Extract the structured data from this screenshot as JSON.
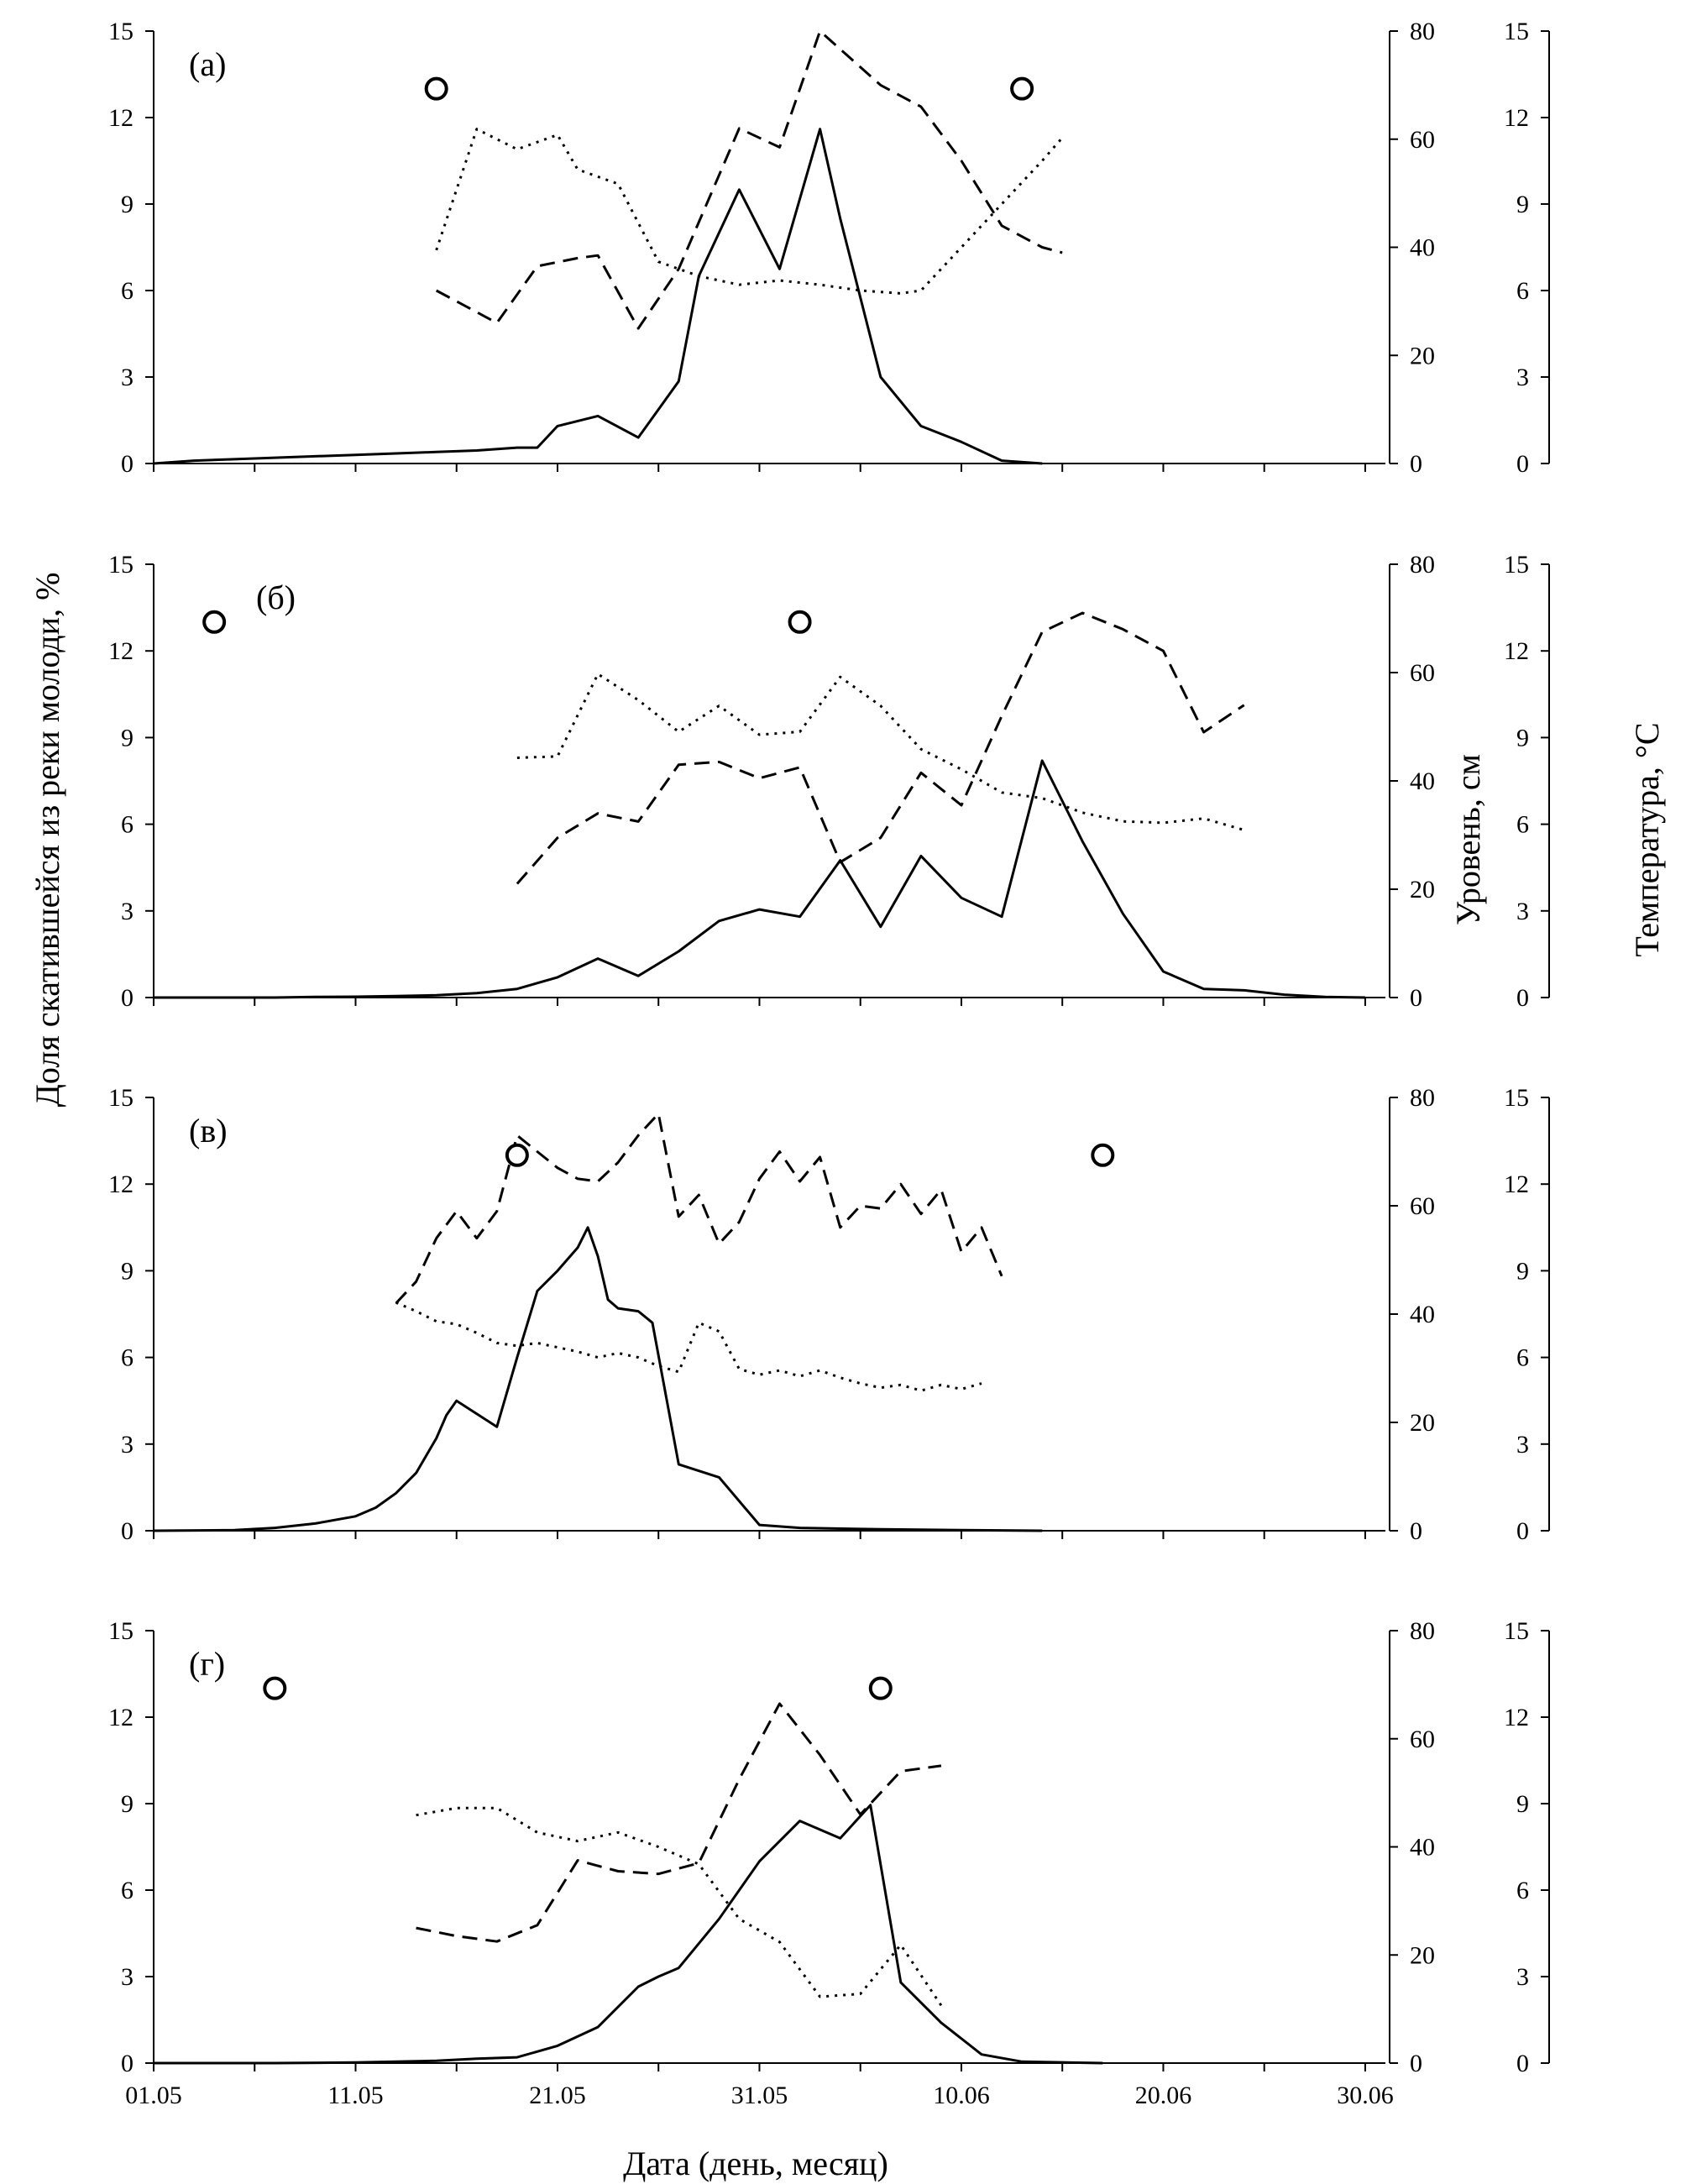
{
  "chart_data": {
    "type": "line",
    "ylabel": "Доля скатившейся из реки молоди, %",
    "ylabel_level": "Уровень, см",
    "ylabel_temp": "Температура, °C",
    "xlabel": "Дата (день, месяц)",
    "x_ticks": [
      "01.05",
      "11.05",
      "21.05",
      "31.05",
      "10.06",
      "20.06",
      "30.06"
    ],
    "xlim": [
      0,
      61
    ],
    "ylim": [
      0,
      15
    ],
    "ylim_level": [
      0,
      80
    ],
    "ylim_temp": [
      0,
      15
    ],
    "y_ticks": [
      0,
      3,
      6,
      9,
      12,
      15
    ],
    "y_ticks_level": [
      0,
      20,
      40,
      60,
      80
    ],
    "y_ticks_temp": [
      0,
      3,
      6,
      9,
      12,
      15
    ],
    "panels": [
      {
        "label": "(а)",
        "share": [
          [
            0,
            0
          ],
          [
            2,
            0.1
          ],
          [
            4,
            0.15
          ],
          [
            6,
            0.2
          ],
          [
            8,
            0.25
          ],
          [
            10,
            0.3
          ],
          [
            12,
            0.35
          ],
          [
            14,
            0.4
          ],
          [
            16,
            0.45
          ],
          [
            18,
            0.55
          ],
          [
            19,
            0.55
          ],
          [
            20,
            1.3
          ],
          [
            22,
            1.65
          ],
          [
            24,
            0.9
          ],
          [
            26,
            2.85
          ],
          [
            27,
            6.5
          ],
          [
            29,
            9.5
          ],
          [
            31,
            6.75
          ],
          [
            33,
            11.6
          ],
          [
            34,
            8.5
          ],
          [
            36,
            3.0
          ],
          [
            38,
            1.3
          ],
          [
            40,
            0.75
          ],
          [
            42,
            0.1
          ],
          [
            44,
            0
          ]
        ],
        "level": [
          [
            14,
            32
          ],
          [
            17,
            26
          ],
          [
            19,
            36.5
          ],
          [
            21,
            38
          ],
          [
            22,
            38.5
          ],
          [
            24,
            25
          ],
          [
            26,
            36
          ],
          [
            29,
            62
          ],
          [
            31,
            58.5
          ],
          [
            33,
            80
          ],
          [
            36,
            70
          ],
          [
            38,
            66
          ],
          [
            40,
            56
          ],
          [
            42,
            44
          ],
          [
            44,
            40
          ],
          [
            45,
            39
          ]
        ],
        "temp": [
          [
            14,
            7.4
          ],
          [
            16,
            11.6
          ],
          [
            18,
            10.9
          ],
          [
            20,
            11.4
          ],
          [
            21,
            10.2
          ],
          [
            23,
            9.7
          ],
          [
            25,
            7.0
          ],
          [
            27,
            6.5
          ],
          [
            29,
            6.2
          ],
          [
            31,
            6.35
          ],
          [
            33,
            6.2
          ],
          [
            35,
            6.0
          ],
          [
            37,
            5.9
          ],
          [
            38,
            6.0
          ],
          [
            40,
            7.5
          ],
          [
            42,
            9.0
          ],
          [
            44,
            10.5
          ],
          [
            45,
            11.3
          ]
        ],
        "markers": [
          [
            14,
            13
          ],
          [
            43,
            13
          ]
        ]
      },
      {
        "label": "(б)",
        "share": [
          [
            0,
            0
          ],
          [
            6,
            0
          ],
          [
            8,
            0.02
          ],
          [
            10,
            0.03
          ],
          [
            12,
            0.05
          ],
          [
            14,
            0.08
          ],
          [
            16,
            0.15
          ],
          [
            18,
            0.3
          ],
          [
            20,
            0.7
          ],
          [
            22,
            1.35
          ],
          [
            24,
            0.75
          ],
          [
            26,
            1.6
          ],
          [
            28,
            2.65
          ],
          [
            30,
            3.05
          ],
          [
            32,
            2.8
          ],
          [
            34,
            4.75
          ],
          [
            36,
            2.45
          ],
          [
            38,
            4.9
          ],
          [
            40,
            3.45
          ],
          [
            42,
            2.8
          ],
          [
            44,
            8.2
          ],
          [
            46,
            5.4
          ],
          [
            48,
            2.9
          ],
          [
            50,
            0.9
          ],
          [
            52,
            0.3
          ],
          [
            54,
            0.25
          ],
          [
            56,
            0.1
          ],
          [
            58,
            0.02
          ],
          [
            60,
            0
          ]
        ],
        "level": [
          [
            18,
            21
          ],
          [
            20,
            29.5
          ],
          [
            22,
            34
          ],
          [
            24,
            32.5
          ],
          [
            26,
            43
          ],
          [
            28,
            43.5
          ],
          [
            30,
            40.5
          ],
          [
            32,
            42.5
          ],
          [
            34,
            25
          ],
          [
            36,
            29.5
          ],
          [
            38,
            41.5
          ],
          [
            40,
            35.5
          ],
          [
            42,
            52
          ],
          [
            44,
            67.5
          ],
          [
            46,
            71
          ],
          [
            48,
            68
          ],
          [
            50,
            64
          ],
          [
            52,
            49
          ],
          [
            54,
            54
          ]
        ],
        "temp": [
          [
            18,
            8.3
          ],
          [
            20,
            8.35
          ],
          [
            22,
            11.2
          ],
          [
            24,
            10.3
          ],
          [
            26,
            9.2
          ],
          [
            28,
            10.1
          ],
          [
            30,
            9.1
          ],
          [
            32,
            9.2
          ],
          [
            34,
            11.1
          ],
          [
            36,
            10.1
          ],
          [
            38,
            8.6
          ],
          [
            40,
            7.9
          ],
          [
            42,
            7.1
          ],
          [
            44,
            6.9
          ],
          [
            46,
            6.4
          ],
          [
            48,
            6.1
          ],
          [
            50,
            6.05
          ],
          [
            52,
            6.2
          ],
          [
            54,
            5.8
          ]
        ],
        "markers": [
          [
            3,
            13
          ],
          [
            32,
            13
          ]
        ]
      },
      {
        "label": "(в)",
        "share": [
          [
            0,
            0
          ],
          [
            4,
            0.02
          ],
          [
            6,
            0.1
          ],
          [
            8,
            0.25
          ],
          [
            10,
            0.5
          ],
          [
            11,
            0.8
          ],
          [
            12,
            1.3
          ],
          [
            13,
            2.0
          ],
          [
            14,
            3.2
          ],
          [
            14.5,
            4.0
          ],
          [
            15,
            4.5
          ],
          [
            17,
            3.6
          ],
          [
            18,
            6.0
          ],
          [
            19,
            8.3
          ],
          [
            20,
            9.0
          ],
          [
            21,
            9.8
          ],
          [
            21.5,
            10.5
          ],
          [
            22,
            9.5
          ],
          [
            22.5,
            8.0
          ],
          [
            23,
            7.7
          ],
          [
            24,
            7.6
          ],
          [
            24.7,
            7.2
          ],
          [
            26,
            2.3
          ],
          [
            28,
            1.85
          ],
          [
            30,
            0.2
          ],
          [
            32,
            0.1
          ],
          [
            36,
            0.05
          ],
          [
            40,
            0.02
          ],
          [
            44,
            0
          ]
        ],
        "level": [
          [
            12,
            42
          ],
          [
            13,
            46
          ],
          [
            14,
            54
          ],
          [
            15,
            59
          ],
          [
            16,
            54
          ],
          [
            17,
            59
          ],
          [
            18,
            73
          ],
          [
            19,
            70
          ],
          [
            20,
            67
          ],
          [
            21,
            65
          ],
          [
            22,
            64.5
          ],
          [
            23,
            68
          ],
          [
            24,
            73
          ],
          [
            25,
            77
          ],
          [
            26,
            58
          ],
          [
            27,
            62
          ],
          [
            28,
            53
          ],
          [
            29,
            57
          ],
          [
            30,
            65
          ],
          [
            31,
            70
          ],
          [
            32,
            64.5
          ],
          [
            33,
            69
          ],
          [
            34,
            56
          ],
          [
            35,
            60
          ],
          [
            36,
            59.5
          ],
          [
            37,
            64
          ],
          [
            38,
            58.5
          ],
          [
            39,
            63
          ],
          [
            40,
            51.5
          ],
          [
            41,
            56
          ],
          [
            42,
            47
          ]
        ],
        "temp": [
          [
            12,
            7.9
          ],
          [
            13,
            7.6
          ],
          [
            14,
            7.25
          ],
          [
            15,
            7.15
          ],
          [
            16,
            6.85
          ],
          [
            17,
            6.5
          ],
          [
            18,
            6.4
          ],
          [
            19,
            6.5
          ],
          [
            20,
            6.35
          ],
          [
            21,
            6.2
          ],
          [
            22,
            6.0
          ],
          [
            23,
            6.15
          ],
          [
            24,
            6.0
          ],
          [
            25,
            5.7
          ],
          [
            26,
            5.5
          ],
          [
            27,
            7.2
          ],
          [
            28,
            6.9
          ],
          [
            29,
            5.6
          ],
          [
            30,
            5.4
          ],
          [
            31,
            5.55
          ],
          [
            32,
            5.35
          ],
          [
            33,
            5.55
          ],
          [
            34,
            5.3
          ],
          [
            35,
            5.1
          ],
          [
            36,
            4.95
          ],
          [
            37,
            5.05
          ],
          [
            38,
            4.85
          ],
          [
            39,
            5.05
          ],
          [
            40,
            4.9
          ],
          [
            41,
            5.1
          ]
        ],
        "markers": [
          [
            18,
            13
          ],
          [
            47,
            13
          ]
        ]
      },
      {
        "label": "(г)",
        "share": [
          [
            0,
            0
          ],
          [
            6,
            0
          ],
          [
            10,
            0.02
          ],
          [
            14,
            0.08
          ],
          [
            16,
            0.15
          ],
          [
            18,
            0.2
          ],
          [
            20,
            0.6
          ],
          [
            22,
            1.25
          ],
          [
            24,
            2.65
          ],
          [
            25,
            3.0
          ],
          [
            26,
            3.3
          ],
          [
            28,
            5.0
          ],
          [
            30,
            7.0
          ],
          [
            32,
            8.4
          ],
          [
            34,
            7.8
          ],
          [
            35.5,
            8.95
          ],
          [
            37,
            2.8
          ],
          [
            39,
            1.4
          ],
          [
            41,
            0.3
          ],
          [
            43,
            0.05
          ],
          [
            47,
            0
          ]
        ],
        "level": [
          [
            13,
            25
          ],
          [
            15,
            23.5
          ],
          [
            17,
            22.5
          ],
          [
            19,
            25.5
          ],
          [
            21,
            37.5
          ],
          [
            23,
            35.5
          ],
          [
            25,
            35
          ],
          [
            27,
            37
          ],
          [
            29,
            52.5
          ],
          [
            31,
            66.5
          ],
          [
            33,
            57
          ],
          [
            35,
            46
          ],
          [
            37,
            54
          ],
          [
            39,
            55
          ]
        ],
        "temp": [
          [
            13,
            8.6
          ],
          [
            15,
            8.85
          ],
          [
            17,
            8.85
          ],
          [
            19,
            8.0
          ],
          [
            21,
            7.7
          ],
          [
            23,
            8.0
          ],
          [
            25,
            7.5
          ],
          [
            27,
            6.9
          ],
          [
            29,
            5.0
          ],
          [
            31,
            4.2
          ],
          [
            33,
            2.3
          ],
          [
            35,
            2.4
          ],
          [
            37,
            4.1
          ],
          [
            39,
            2.0
          ]
        ],
        "markers": [
          [
            6,
            13
          ],
          [
            36,
            13
          ]
        ]
      }
    ]
  }
}
